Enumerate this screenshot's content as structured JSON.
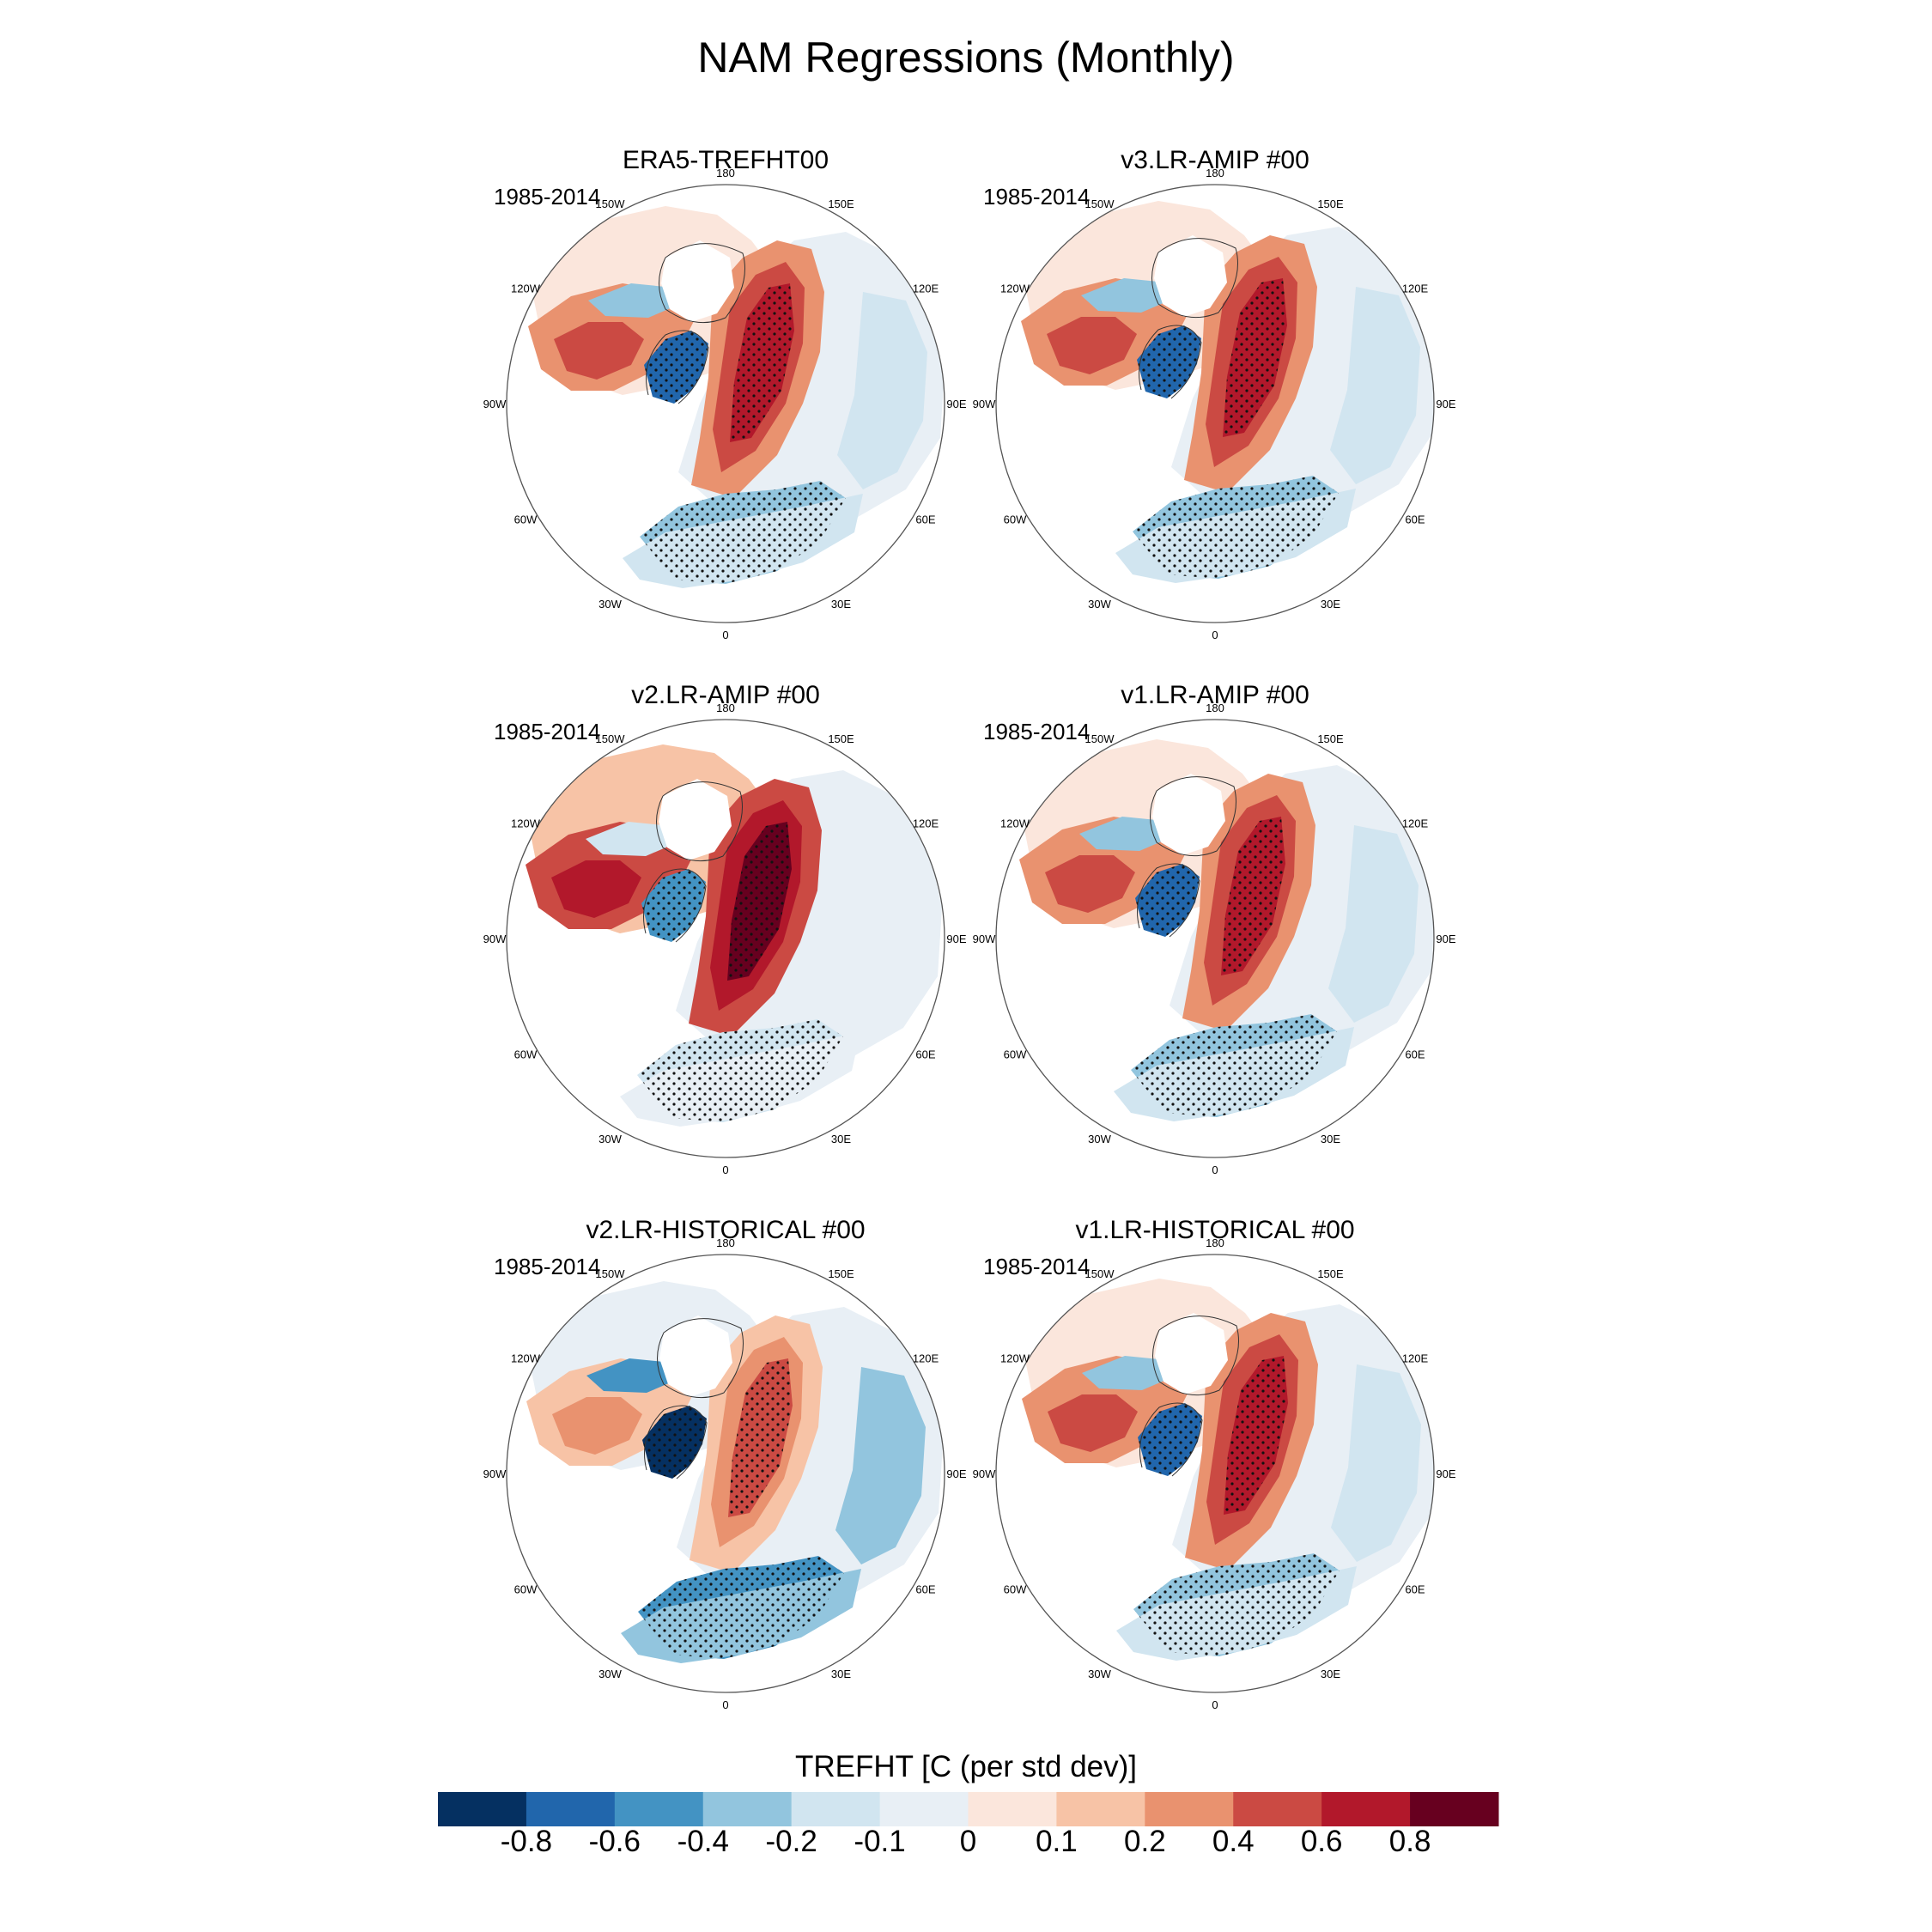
{
  "title": "NAM Regressions (Monthly)",
  "panels": [
    {
      "title": "ERA5-TREFHT00",
      "period": "1985-2014"
    },
    {
      "title": "v3.LR-AMIP  #00",
      "period": "1985-2014"
    },
    {
      "title": "v2.LR-AMIP  #00",
      "period": "1985-2014"
    },
    {
      "title": "v1.LR-AMIP  #00",
      "period": "1985-2014"
    },
    {
      "title": "v2.LR-HISTORICAL  #00",
      "period": "1985-2014"
    },
    {
      "title": "v1.LR-HISTORICAL  #00",
      "period": "1985-2014"
    }
  ],
  "longitude_labels": [
    "180",
    "150E",
    "120E",
    "90E",
    "60E",
    "30E",
    "0",
    "30W",
    "60W",
    "90W",
    "120W",
    "150W"
  ],
  "colorbar": {
    "title": "TREFHT [C (per std dev)]",
    "tick_labels": [
      "-0.8",
      "-0.6",
      "-0.4",
      "-0.2",
      "-0.1",
      "0",
      "0.1",
      "0.2",
      "0.4",
      "0.6",
      "0.8"
    ],
    "colors": [
      "#053061",
      "#2166ac",
      "#4393c3",
      "#92c5de",
      "#d1e5f0",
      "#e8eff5",
      "#fbe6dc",
      "#f7c3a6",
      "#e9926f",
      "#cb4a43",
      "#b2182b",
      "#67001f"
    ]
  }
}
